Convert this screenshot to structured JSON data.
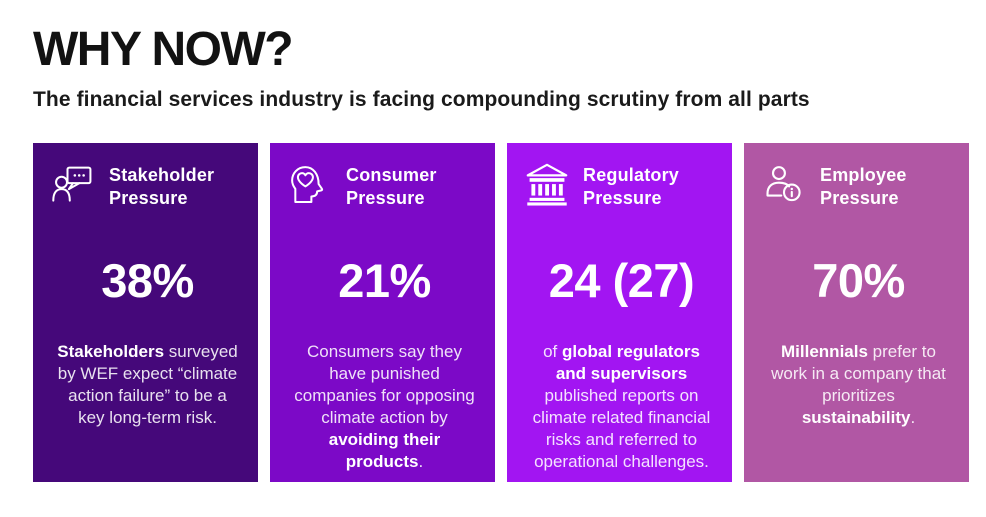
{
  "page": {
    "title": "WHY NOW?",
    "subtitle": "The financial services industry is facing compounding scrutiny from all parts"
  },
  "colors": {
    "card_stakeholder": "#45087A",
    "card_consumer": "#7C09C7",
    "card_regulatory": "#A215F2",
    "card_employee": "#B157A4",
    "heading_text": "#121212",
    "card_text": "#FFFFFF"
  },
  "cards": [
    {
      "icon": "person-speech-bubble-icon",
      "title": "Stakeholder Pressure",
      "stat": "38%",
      "bg": "#45087A",
      "body": [
        {
          "text": "Stakeholders",
          "bold": true
        },
        {
          "text": " surveyed by WEF expect “climate action failure” to be a key long-term risk.",
          "bold": false
        }
      ]
    },
    {
      "icon": "head-heart-icon",
      "title": "Consumer Pressure",
      "stat": "21%",
      "bg": "#7C09C7",
      "body": [
        {
          "text": "Consumers say they have punished companies for opposing climate action by ",
          "bold": false
        },
        {
          "text": "avoiding their products",
          "bold": true
        },
        {
          "text": ".",
          "bold": false
        }
      ]
    },
    {
      "icon": "bank-building-icon",
      "title": "Regulatory Pressure",
      "stat": "24 (27)",
      "bg": "#A215F2",
      "body": [
        {
          "text": "of ",
          "bold": false
        },
        {
          "text": "global regulators and supervisors",
          "bold": true
        },
        {
          "text": " published reports on climate related financial risks and referred to operational challenges.",
          "bold": false
        }
      ]
    },
    {
      "icon": "person-info-icon",
      "title": "Employee Pressure",
      "stat": "70%",
      "bg": "#B157A4",
      "body": [
        {
          "text": "Millennials",
          "bold": true
        },
        {
          "text": " prefer to work in a company that prioritizes ",
          "bold": false
        },
        {
          "text": "sustainability",
          "bold": true
        },
        {
          "text": ".",
          "bold": false
        }
      ]
    }
  ]
}
